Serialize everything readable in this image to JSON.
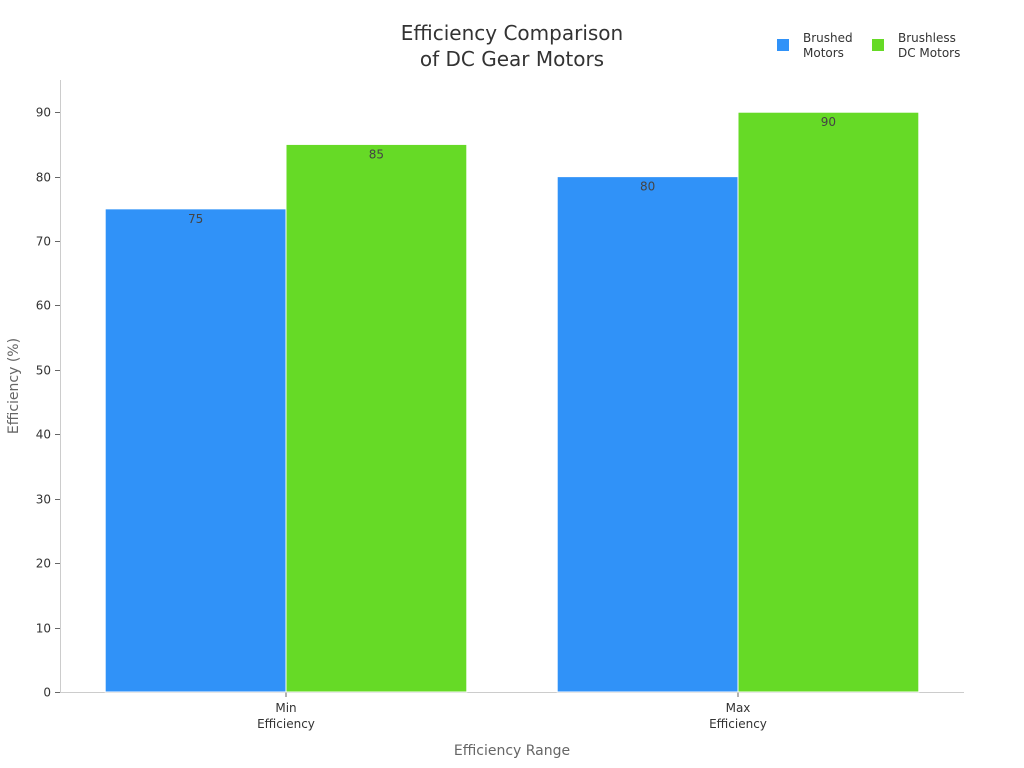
{
  "chart_data": {
    "type": "bar",
    "title": [
      "Efficiency Comparison",
      "of DC Gear Motors"
    ],
    "xlabel": "Efficiency Range",
    "ylabel": "Efficiency (%)",
    "categories": [
      [
        "Min",
        "Efficiency"
      ],
      [
        "Max",
        "Efficiency"
      ]
    ],
    "series": [
      {
        "name": [
          "Brushed",
          "Motors"
        ],
        "color": "#3092f8",
        "values": [
          75,
          80
        ]
      },
      {
        "name": [
          "Brushless",
          "DC Motors"
        ],
        "color": "#66da26",
        "values": [
          85,
          90
        ]
      }
    ],
    "ylim": [
      0,
      95
    ],
    "yticks": [
      0,
      10,
      20,
      30,
      40,
      50,
      60,
      70,
      80,
      90
    ],
    "grid": false,
    "legend_position": "top-right",
    "data_labels": true
  }
}
